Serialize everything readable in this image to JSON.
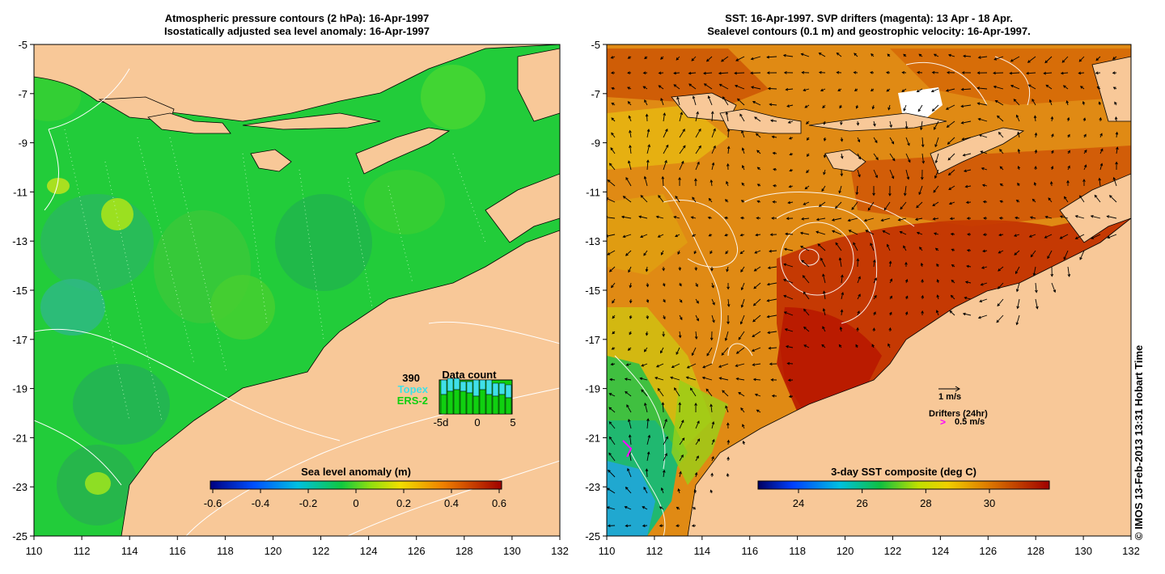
{
  "left_panel": {
    "title_line1": "Atmospheric pressure contours (2 hPa): 16-Apr-1997",
    "title_line2": "Isostatically adjusted sea level anomaly: 16-Apr-1997",
    "x_ticks": [
      "110",
      "112",
      "114",
      "116",
      "118",
      "120",
      "122",
      "124",
      "126",
      "128",
      "130",
      "132"
    ],
    "y_ticks": [
      "-5",
      "-7",
      "-9",
      "-11",
      "-13",
      "-15",
      "-17",
      "-19",
      "-21",
      "-23",
      "-25"
    ],
    "colorbar": {
      "label": "Sea level anomaly (m)",
      "ticks": [
        "-0.6",
        "-0.4",
        "-0.2",
        "0",
        "0.2",
        "0.4",
        "0.6"
      ],
      "range": [
        -0.6,
        0.6
      ]
    },
    "data_count": {
      "title": "Data count",
      "max": "390",
      "series": [
        {
          "name": "Topex",
          "color": "#3fe0e8"
        },
        {
          "name": "ERS-2",
          "color": "#10d010"
        }
      ],
      "ticks": [
        "-5d",
        "0",
        "5"
      ],
      "bars": [
        {
          "topex": 0.45,
          "ers": 0.6
        },
        {
          "topex": 0.4,
          "ers": 0.7
        },
        {
          "topex": 0.35,
          "ers": 0.75
        },
        {
          "topex": 0.3,
          "ers": 0.7
        },
        {
          "topex": 0.35,
          "ers": 0.65
        },
        {
          "topex": 0.5,
          "ers": 0.55
        },
        {
          "topex": 0.3,
          "ers": 0.75
        },
        {
          "topex": 0.45,
          "ers": 0.6
        },
        {
          "topex": 0.4,
          "ers": 0.55
        },
        {
          "topex": 0.35,
          "ers": 0.6
        },
        {
          "topex": 0.4,
          "ers": 0.5
        }
      ]
    }
  },
  "right_panel": {
    "title_line1": "SST: 16-Apr-1997. SVP drifters (magenta): 13 Apr - 18 Apr.",
    "title_line2": "Sealevel contours (0.1 m) and geostrophic velocity: 16-Apr-1997.",
    "x_ticks": [
      "110",
      "112",
      "114",
      "116",
      "118",
      "120",
      "122",
      "124",
      "126",
      "128",
      "130",
      "132"
    ],
    "y_ticks": [
      "-5",
      "-7",
      "-9",
      "-11",
      "-13",
      "-15",
      "-17",
      "-19",
      "-21",
      "-23",
      "-25"
    ],
    "colorbar": {
      "label": "3-day SST composite (deg C)",
      "ticks": [
        "24",
        "26",
        "28",
        "30"
      ]
    },
    "velocity_key": "1 m/s",
    "drifters_key": "Drifters (24hr)",
    "drifters_arrow": ">",
    "drifters_speed": "0.5 m/s"
  },
  "credit": "© IMOS 13-Feb-2013 13:31 Hobart Time",
  "colors": {
    "land": "#f8c898",
    "sla_green": "#22cc44",
    "sst_orange": "#e08a10",
    "sst_red": "#b81800",
    "drifter": "#ff00ff"
  }
}
